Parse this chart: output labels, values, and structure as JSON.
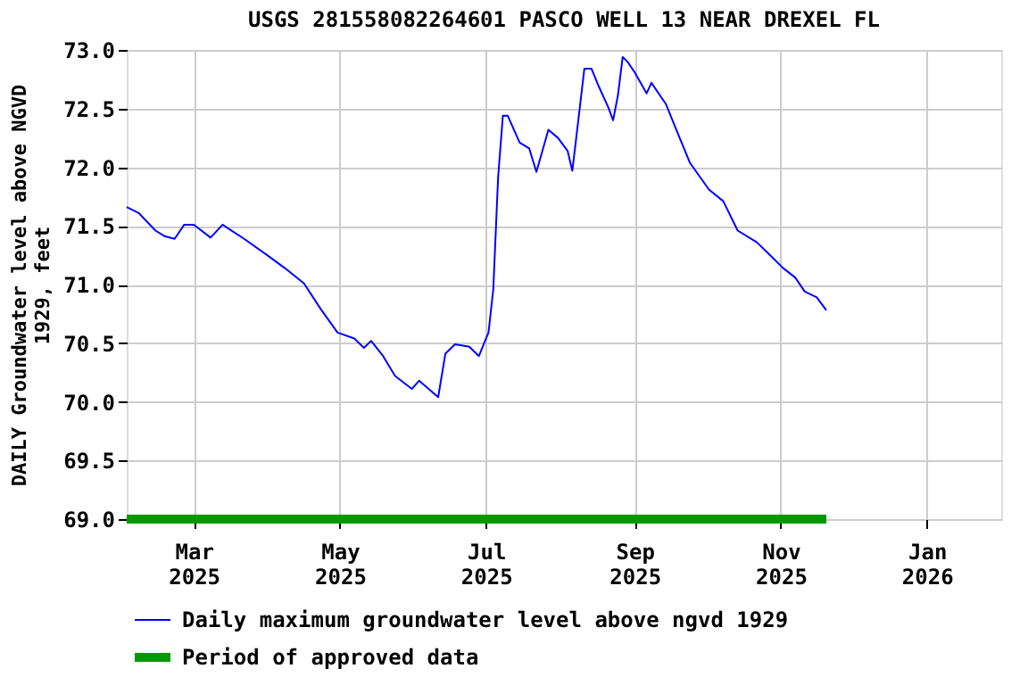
{
  "chart_data": {
    "type": "line",
    "title": "USGS 281558082264601 PASCO WELL 13 NEAR DREXEL FL",
    "ylabel": "DAILY Groundwater level above NGVD 1929, feet",
    "xlim": [
      "2025-02-01",
      "2026-02-01"
    ],
    "xticks": [
      {
        "value": "2025-03-01",
        "label": "Mar 2025"
      },
      {
        "value": "2025-05-01",
        "label": "May 2025"
      },
      {
        "value": "2025-07-01",
        "label": "Jul 2025"
      },
      {
        "value": "2025-09-01",
        "label": "Sep 2025"
      },
      {
        "value": "2025-11-01",
        "label": "Nov 2025"
      },
      {
        "value": "2026-01-01",
        "label": "Jan 2026"
      }
    ],
    "ylim": [
      69.0,
      73.0
    ],
    "yticks": [
      {
        "value": 69.0,
        "label": "69.0"
      },
      {
        "value": 69.5,
        "label": "69.5"
      },
      {
        "value": 70.0,
        "label": "70.0"
      },
      {
        "value": 70.5,
        "label": "70.5"
      },
      {
        "value": 71.0,
        "label": "71.0"
      },
      {
        "value": 71.5,
        "label": "71.5"
      },
      {
        "value": 72.0,
        "label": "72.0"
      },
      {
        "value": 72.5,
        "label": "72.5"
      },
      {
        "value": 73.0,
        "label": "73.0"
      }
    ],
    "grid": true,
    "legend": "bottom",
    "marker": "none",
    "line_style": "solid",
    "series": [
      {
        "name": "Daily maximum groundwater level above ngvd 1929",
        "color": "#0000ff",
        "x": [
          "2025-02-01",
          "2025-02-06",
          "2025-02-13",
          "2025-02-17",
          "2025-02-21",
          "2025-02-25",
          "2025-03-01",
          "2025-03-08",
          "2025-03-13",
          "2025-03-22",
          "2025-03-31",
          "2025-04-08",
          "2025-04-16",
          "2025-04-23",
          "2025-04-30",
          "2025-05-07",
          "2025-05-11",
          "2025-05-14",
          "2025-05-19",
          "2025-05-24",
          "2025-05-31",
          "2025-06-03",
          "2025-06-11",
          "2025-06-14",
          "2025-06-18",
          "2025-06-24",
          "2025-06-28",
          "2025-07-02",
          "2025-07-04",
          "2025-07-06",
          "2025-07-08",
          "2025-07-10",
          "2025-07-15",
          "2025-07-19",
          "2025-07-22",
          "2025-07-27",
          "2025-07-31",
          "2025-08-04",
          "2025-08-06",
          "2025-08-09",
          "2025-08-11",
          "2025-08-14",
          "2025-08-17",
          "2025-08-21",
          "2025-08-23",
          "2025-08-25",
          "2025-08-27",
          "2025-08-29",
          "2025-09-01",
          "2025-09-06",
          "2025-09-08",
          "2025-09-14",
          "2025-09-18",
          "2025-09-24",
          "2025-10-02",
          "2025-10-08",
          "2025-10-14",
          "2025-10-22",
          "2025-10-27",
          "2025-11-02",
          "2025-11-07",
          "2025-11-11",
          "2025-11-16",
          "2025-11-20"
        ],
        "values": [
          71.66,
          71.61,
          71.46,
          71.41,
          71.39,
          71.51,
          71.51,
          71.4,
          71.51,
          71.39,
          71.26,
          71.14,
          71.01,
          70.79,
          70.59,
          70.54,
          70.46,
          70.52,
          70.39,
          70.22,
          70.11,
          70.18,
          70.04,
          70.41,
          70.49,
          70.47,
          70.39,
          70.59,
          70.96,
          71.91,
          72.44,
          72.44,
          72.21,
          72.16,
          71.96,
          72.32,
          72.25,
          72.14,
          71.97,
          72.49,
          72.84,
          72.84,
          72.69,
          72.51,
          72.4,
          72.61,
          72.94,
          72.9,
          72.81,
          72.63,
          72.72,
          72.54,
          72.34,
          72.04,
          71.81,
          71.71,
          71.46,
          71.36,
          71.26,
          71.14,
          71.06,
          70.94,
          70.89,
          70.78
        ]
      },
      {
        "name": "Period of approved data",
        "color": "#009900",
        "x": [
          "2025-02-01",
          "2025-11-20"
        ],
        "values": [
          69.0,
          69.0
        ]
      }
    ]
  }
}
